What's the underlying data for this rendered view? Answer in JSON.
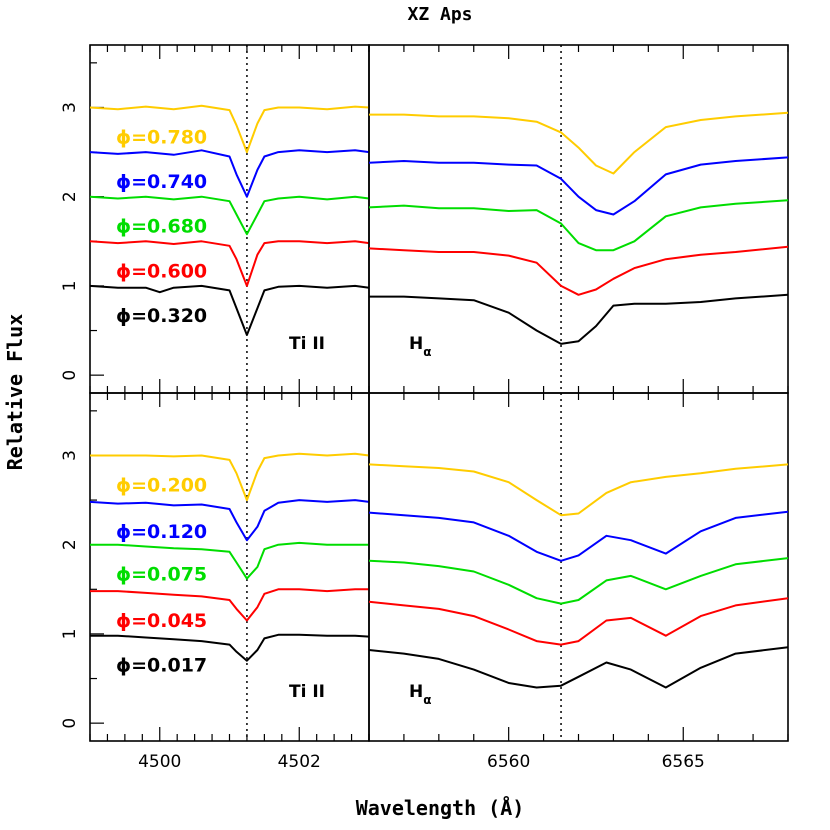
{
  "title": "XZ Aps",
  "xlabel": "Wavelength (Å)",
  "ylabel": "Relative Flux",
  "chart_data": [
    {
      "type": "line",
      "panel": "top-left",
      "line_label": "Ti II",
      "xlim": [
        4499.0,
        4503.0
      ],
      "ylim": [
        -0.2,
        3.7
      ],
      "x_ticks": [],
      "y_ticks": [
        "0",
        "1",
        "2",
        "3"
      ],
      "y_tick_values": [
        0,
        1,
        2,
        3
      ],
      "reference_line_x": 4501.25,
      "series": [
        {
          "name": "φ=0.780",
          "label_text": "ϕ=0.780",
          "color": "#FFCC00",
          "x": [
            4499.0,
            4499.4,
            4499.8,
            4500.2,
            4500.6,
            4501.0,
            4501.1,
            4501.25,
            4501.4,
            4501.5,
            4501.7,
            4502.0,
            4502.4,
            4502.8,
            4503.0
          ],
          "y": [
            3.0,
            2.98,
            3.01,
            2.98,
            3.02,
            2.97,
            2.8,
            2.5,
            2.82,
            2.97,
            3.0,
            3.0,
            2.98,
            3.01,
            3.0
          ]
        },
        {
          "name": "φ=0.740",
          "label_text": "ϕ=0.740",
          "color": "#0000FF",
          "x": [
            4499.0,
            4499.4,
            4499.8,
            4500.2,
            4500.6,
            4501.0,
            4501.1,
            4501.25,
            4501.4,
            4501.5,
            4501.7,
            4502.0,
            4502.4,
            4502.8,
            4503.0
          ],
          "y": [
            2.5,
            2.48,
            2.5,
            2.47,
            2.52,
            2.45,
            2.25,
            2.0,
            2.3,
            2.45,
            2.5,
            2.52,
            2.5,
            2.52,
            2.5
          ]
        },
        {
          "name": "φ=0.680",
          "label_text": "ϕ=0.680",
          "color": "#00DD00",
          "x": [
            4499.0,
            4499.4,
            4499.8,
            4500.2,
            4500.6,
            4501.0,
            4501.1,
            4501.25,
            4501.4,
            4501.5,
            4501.7,
            4502.0,
            4502.4,
            4502.8,
            4503.0
          ],
          "y": [
            2.0,
            1.98,
            2.0,
            1.97,
            2.0,
            1.95,
            1.8,
            1.58,
            1.8,
            1.95,
            1.98,
            2.0,
            1.97,
            2.0,
            1.98
          ]
        },
        {
          "name": "φ=0.600",
          "label_text": "ϕ=0.600",
          "color": "#FF0000",
          "x": [
            4499.0,
            4499.4,
            4499.8,
            4500.2,
            4500.6,
            4501.0,
            4501.1,
            4501.25,
            4501.4,
            4501.5,
            4501.7,
            4502.0,
            4502.4,
            4502.8,
            4503.0
          ],
          "y": [
            1.5,
            1.48,
            1.5,
            1.47,
            1.5,
            1.45,
            1.3,
            1.0,
            1.35,
            1.48,
            1.5,
            1.5,
            1.48,
            1.5,
            1.48
          ]
        },
        {
          "name": "φ=0.320",
          "label_text": "ϕ=0.320",
          "color": "#000000",
          "x": [
            4499.0,
            4499.4,
            4499.8,
            4500.0,
            4500.2,
            4500.6,
            4501.0,
            4501.1,
            4501.25,
            4501.4,
            4501.5,
            4501.7,
            4502.0,
            4502.4,
            4502.8,
            4503.0
          ],
          "y": [
            1.0,
            0.98,
            0.98,
            0.93,
            0.98,
            1.0,
            0.95,
            0.75,
            0.45,
            0.75,
            0.95,
            0.99,
            1.0,
            0.98,
            1.0,
            0.98
          ]
        }
      ]
    },
    {
      "type": "line",
      "panel": "top-right",
      "line_label": "Hα",
      "xlim": [
        6556.0,
        6568.0
      ],
      "ylim": [
        -0.2,
        3.7
      ],
      "x_ticks": [],
      "reference_line_x": 6561.5,
      "series": [
        {
          "name": "φ=0.780",
          "color": "#FFCC00",
          "x": [
            6556,
            6557,
            6558,
            6559,
            6560,
            6560.8,
            6561.5,
            6562,
            6562.5,
            6563,
            6563.6,
            6564.5,
            6565.5,
            6566.5,
            6568
          ],
          "y": [
            2.92,
            2.92,
            2.9,
            2.9,
            2.88,
            2.84,
            2.72,
            2.55,
            2.35,
            2.26,
            2.5,
            2.78,
            2.86,
            2.9,
            2.94
          ]
        },
        {
          "name": "φ=0.740",
          "color": "#0000FF",
          "x": [
            6556,
            6557,
            6558,
            6559,
            6560,
            6560.8,
            6561.5,
            6562,
            6562.5,
            6563,
            6563.6,
            6564.5,
            6565.5,
            6566.5,
            6568
          ],
          "y": [
            2.38,
            2.4,
            2.38,
            2.38,
            2.36,
            2.35,
            2.2,
            2.0,
            1.85,
            1.8,
            1.95,
            2.25,
            2.36,
            2.4,
            2.44
          ]
        },
        {
          "name": "φ=0.680",
          "color": "#00DD00",
          "x": [
            6556,
            6557,
            6558,
            6559,
            6560,
            6560.8,
            6561.5,
            6562,
            6562.5,
            6563,
            6563.6,
            6564.5,
            6565.5,
            6566.5,
            6568
          ],
          "y": [
            1.88,
            1.9,
            1.87,
            1.87,
            1.84,
            1.85,
            1.7,
            1.48,
            1.4,
            1.4,
            1.5,
            1.78,
            1.88,
            1.92,
            1.96
          ]
        },
        {
          "name": "φ=0.600",
          "color": "#FF0000",
          "x": [
            6556,
            6557,
            6558,
            6559,
            6560,
            6560.8,
            6561.5,
            6562,
            6562.5,
            6563,
            6563.6,
            6564.5,
            6565.5,
            6566.5,
            6568
          ],
          "y": [
            1.42,
            1.4,
            1.38,
            1.38,
            1.34,
            1.26,
            1.0,
            0.9,
            0.96,
            1.08,
            1.2,
            1.3,
            1.35,
            1.38,
            1.44
          ]
        },
        {
          "name": "φ=0.320",
          "color": "#000000",
          "x": [
            6556,
            6557,
            6558,
            6559,
            6560,
            6560.8,
            6561.5,
            6562,
            6562.5,
            6563,
            6563.6,
            6564.5,
            6565.5,
            6566.5,
            6568
          ],
          "y": [
            0.88,
            0.88,
            0.86,
            0.84,
            0.7,
            0.5,
            0.35,
            0.38,
            0.55,
            0.78,
            0.8,
            0.8,
            0.82,
            0.86,
            0.9
          ]
        }
      ]
    },
    {
      "type": "line",
      "panel": "bottom-left",
      "line_label": "Ti II",
      "xlim": [
        4499.0,
        4503.0
      ],
      "ylim": [
        -0.2,
        3.7
      ],
      "x_ticks": [
        "4500",
        "4502"
      ],
      "x_tick_values": [
        4500,
        4502
      ],
      "y_ticks": [
        "0",
        "1",
        "2",
        "3"
      ],
      "y_tick_values": [
        0,
        1,
        2,
        3
      ],
      "reference_line_x": 4501.25,
      "series": [
        {
          "name": "φ=0.200",
          "label_text": "ϕ=0.200",
          "color": "#FFCC00",
          "x": [
            4499.0,
            4499.4,
            4499.8,
            4500.2,
            4500.6,
            4501.0,
            4501.1,
            4501.25,
            4501.4,
            4501.5,
            4501.7,
            4502.0,
            4502.4,
            4502.8,
            4503.0
          ],
          "y": [
            3.0,
            3.0,
            3.0,
            2.99,
            3.0,
            2.95,
            2.8,
            2.5,
            2.82,
            2.97,
            3.0,
            3.02,
            3.0,
            3.02,
            3.0
          ]
        },
        {
          "name": "φ=0.120",
          "label_text": "ϕ=0.120",
          "color": "#0000FF",
          "x": [
            4499.0,
            4499.4,
            4499.8,
            4500.2,
            4500.6,
            4501.0,
            4501.1,
            4501.25,
            4501.4,
            4501.5,
            4501.7,
            4502.0,
            4502.4,
            4502.8,
            4503.0
          ],
          "y": [
            2.48,
            2.46,
            2.47,
            2.44,
            2.45,
            2.4,
            2.25,
            2.05,
            2.2,
            2.38,
            2.47,
            2.5,
            2.48,
            2.5,
            2.48
          ]
        },
        {
          "name": "φ=0.075",
          "label_text": "ϕ=0.075",
          "color": "#00DD00",
          "x": [
            4499.0,
            4499.4,
            4499.8,
            4500.2,
            4500.6,
            4501.0,
            4501.1,
            4501.25,
            4501.4,
            4501.5,
            4501.7,
            4502.0,
            4502.4,
            4502.8,
            4503.0
          ],
          "y": [
            2.0,
            2.0,
            1.98,
            1.96,
            1.95,
            1.92,
            1.8,
            1.62,
            1.75,
            1.95,
            2.0,
            2.02,
            2.0,
            2.0,
            2.0
          ]
        },
        {
          "name": "φ=0.045",
          "label_text": "ϕ=0.045",
          "color": "#FF0000",
          "x": [
            4499.0,
            4499.4,
            4499.8,
            4500.2,
            4500.6,
            4501.0,
            4501.1,
            4501.25,
            4501.4,
            4501.5,
            4501.7,
            4502.0,
            4502.4,
            4502.8,
            4503.0
          ],
          "y": [
            1.48,
            1.48,
            1.46,
            1.44,
            1.42,
            1.38,
            1.28,
            1.15,
            1.3,
            1.45,
            1.5,
            1.5,
            1.48,
            1.5,
            1.5
          ]
        },
        {
          "name": "φ=0.017",
          "label_text": "ϕ=0.017",
          "color": "#000000",
          "x": [
            4499.0,
            4499.4,
            4499.8,
            4500.2,
            4500.6,
            4501.0,
            4501.1,
            4501.25,
            4501.4,
            4501.5,
            4501.7,
            4502.0,
            4502.4,
            4502.8,
            4503.0
          ],
          "y": [
            0.98,
            0.98,
            0.96,
            0.94,
            0.92,
            0.88,
            0.8,
            0.7,
            0.82,
            0.95,
            0.99,
            0.99,
            0.98,
            0.98,
            0.97
          ]
        }
      ]
    },
    {
      "type": "line",
      "panel": "bottom-right",
      "line_label": "Hα",
      "xlim": [
        6556.0,
        6568.0
      ],
      "ylim": [
        -0.2,
        3.7
      ],
      "x_ticks": [
        "6560",
        "6565"
      ],
      "x_tick_values": [
        6560,
        6565
      ],
      "reference_line_x": 6561.5,
      "series": [
        {
          "name": "φ=0.200",
          "color": "#FFCC00",
          "x": [
            6556,
            6557,
            6558,
            6559,
            6560,
            6560.8,
            6561.5,
            6562,
            6562.8,
            6563.5,
            6564.5,
            6565.5,
            6566.5,
            6568
          ],
          "y": [
            2.9,
            2.88,
            2.86,
            2.82,
            2.7,
            2.5,
            2.33,
            2.35,
            2.58,
            2.7,
            2.76,
            2.8,
            2.85,
            2.9
          ]
        },
        {
          "name": "φ=0.120",
          "color": "#0000FF",
          "x": [
            6556,
            6557,
            6558,
            6559,
            6560,
            6560.8,
            6561.5,
            6562,
            6562.8,
            6563.5,
            6564.5,
            6565.5,
            6566.5,
            6568
          ],
          "y": [
            2.36,
            2.33,
            2.3,
            2.25,
            2.1,
            1.92,
            1.82,
            1.88,
            2.1,
            2.05,
            1.9,
            2.15,
            2.3,
            2.37
          ]
        },
        {
          "name": "φ=0.075",
          "color": "#00DD00",
          "x": [
            6556,
            6557,
            6558,
            6559,
            6560,
            6560.8,
            6561.5,
            6562,
            6562.8,
            6563.5,
            6564.5,
            6565.5,
            6566.5,
            6568
          ],
          "y": [
            1.82,
            1.8,
            1.76,
            1.7,
            1.55,
            1.4,
            1.34,
            1.38,
            1.6,
            1.65,
            1.5,
            1.65,
            1.78,
            1.85
          ]
        },
        {
          "name": "φ=0.045",
          "color": "#FF0000",
          "x": [
            6556,
            6557,
            6558,
            6559,
            6560,
            6560.8,
            6561.5,
            6562,
            6562.8,
            6563.5,
            6564.5,
            6565.5,
            6566.5,
            6568
          ],
          "y": [
            1.36,
            1.32,
            1.28,
            1.2,
            1.05,
            0.92,
            0.88,
            0.92,
            1.15,
            1.18,
            0.98,
            1.2,
            1.32,
            1.4
          ]
        },
        {
          "name": "φ=0.017",
          "color": "#000000",
          "x": [
            6556,
            6557,
            6558,
            6559,
            6560,
            6560.8,
            6561.5,
            6562,
            6562.8,
            6563.5,
            6564.5,
            6565.5,
            6566.5,
            6568
          ],
          "y": [
            0.82,
            0.78,
            0.72,
            0.6,
            0.45,
            0.4,
            0.42,
            0.52,
            0.68,
            0.6,
            0.4,
            0.62,
            0.78,
            0.85
          ]
        }
      ]
    }
  ]
}
